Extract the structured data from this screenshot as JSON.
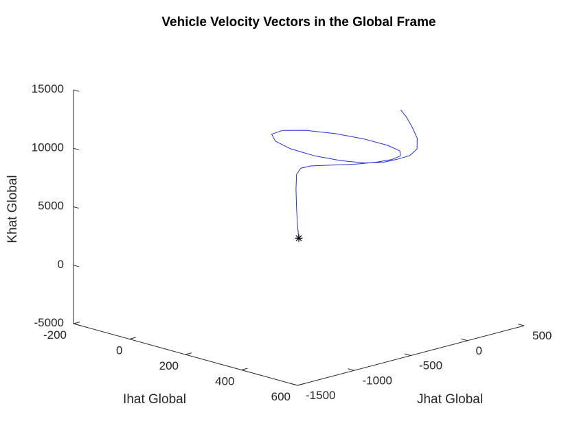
{
  "chart_data": {
    "type": "line3d",
    "title": "Vehicle Velocity Vectors in the Global Frame",
    "xlabel": "Ihat Global",
    "ylabel": "Jhat Global",
    "zlabel": "Khat Global",
    "xlim": [
      -200,
      600
    ],
    "ylim": [
      -1500,
      500
    ],
    "zlim": [
      -5000,
      15000
    ],
    "xticks": [
      -200,
      0,
      200,
      400,
      600
    ],
    "yticks": [
      -1500,
      -1000,
      -500,
      0,
      500
    ],
    "zticks": [
      -5000,
      0,
      5000,
      10000,
      15000
    ],
    "grid": false,
    "series": [
      {
        "marker": "*",
        "color": "#1f2fd0",
        "marker_color": "#000000",
        "points": [
          [
            200,
            -500,
            2400
          ],
          [
            195,
            -500,
            3500
          ],
          [
            192,
            -500,
            5000
          ],
          [
            190,
            -500,
            6500
          ],
          [
            192,
            -500,
            7800
          ],
          [
            205,
            -495,
            8400
          ],
          [
            230,
            -470,
            8700
          ],
          [
            280,
            -410,
            8950
          ],
          [
            330,
            -330,
            9150
          ],
          [
            370,
            -240,
            9350
          ],
          [
            395,
            -160,
            9550
          ],
          [
            405,
            -110,
            9800
          ],
          [
            395,
            -90,
            10100
          ],
          [
            360,
            -110,
            10400
          ],
          [
            300,
            -170,
            10700
          ],
          [
            230,
            -250,
            10900
          ],
          [
            160,
            -340,
            10950
          ],
          [
            110,
            -420,
            10820
          ],
          [
            95,
            -480,
            10550
          ],
          [
            120,
            -510,
            10200
          ],
          [
            170,
            -500,
            9850
          ],
          [
            240,
            -460,
            9600
          ],
          [
            310,
            -400,
            9500
          ],
          [
            370,
            -340,
            9550
          ],
          [
            410,
            -280,
            9700
          ],
          [
            430,
            -200,
            9900
          ],
          [
            435,
            -100,
            10000
          ],
          [
            420,
            0,
            10200
          ],
          [
            380,
            100,
            10600
          ],
          [
            330,
            180,
            11000
          ],
          [
            280,
            250,
            11400
          ],
          [
            240,
            300,
            11600
          ]
        ]
      }
    ]
  }
}
